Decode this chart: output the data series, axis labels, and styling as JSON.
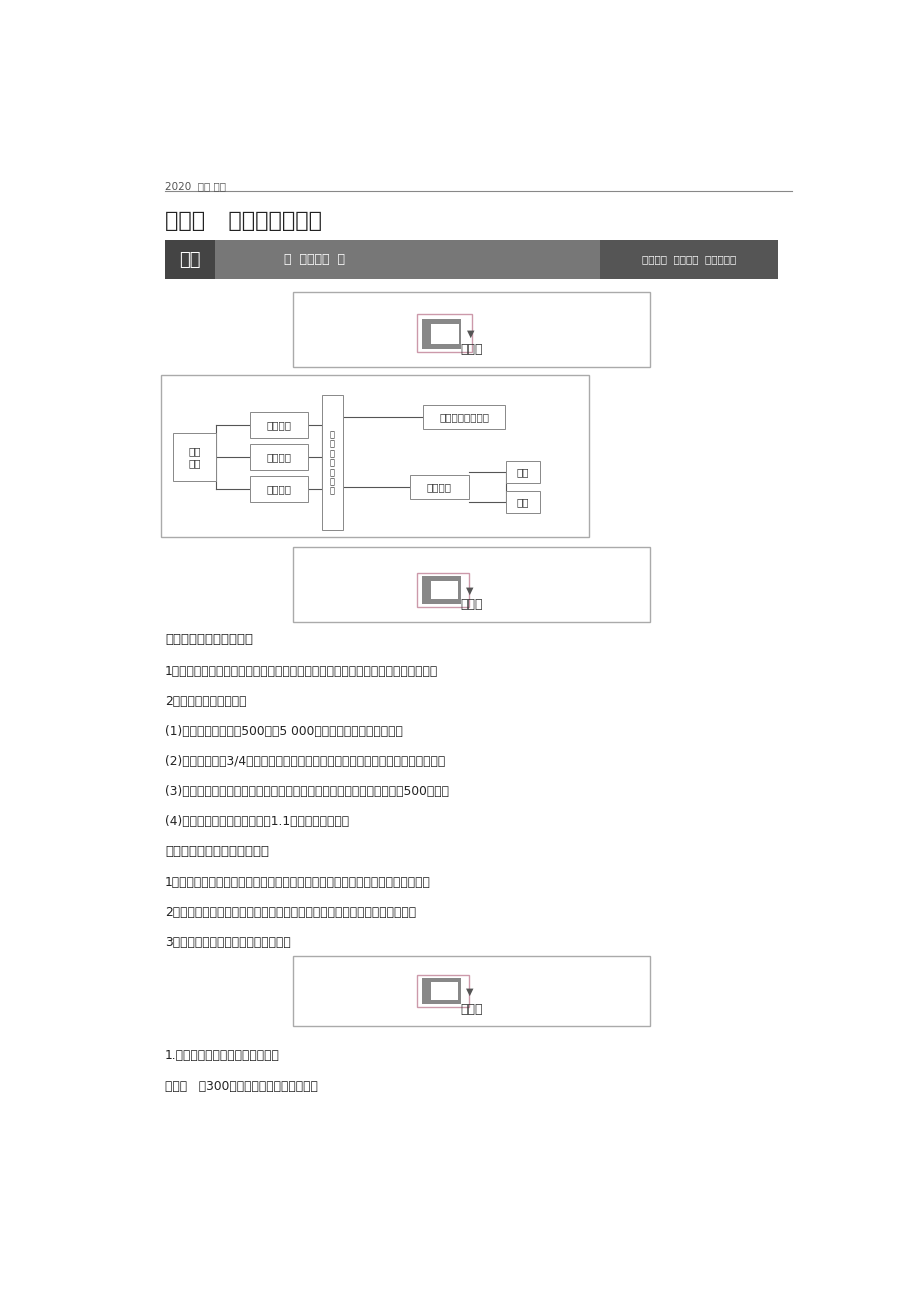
{
  "bg_color": "#ffffff",
  "page_width": 9.2,
  "page_height": 13.02,
  "header_text": "2020  高考 物理",
  "title_text": "第四节   生物多样性保护",
  "banner_bg": "#6d6d6d",
  "banner_left_text": "一测",
  "banner_mid_text": "基础过关",
  "banner_right_text": "分层设计  助学助记  认知更深刻",
  "jiyiji_label": "记一记",
  "tianyi_tian_label": "填一填",
  "yanyi_yan_label": "研一研",
  "section1_title": "一、物种灭绝现象正常吗",
  "text_lines": [
    "1．生物多样性的层次：包括遗传多样性、物种多样性和生态系统多样性三个层次。",
    "2．生物多样性的现状：",
    "(1)物种数量：估计有500万～5 000万种，目前数量日益减少。",
    "(2)物种分布：约3/4生活在热带地区，以生活在热带雨林和珊瑚礁中的最为丰富。",
    "(3)物种寿命：物种也有发生、发育和消亡的过程，物种平均寿命大约是500万年。",
    "(4)灭绝速度：自然状态下平均1.1年灭绝一个物种。"
  ],
  "section2_title": "二、人类活动加速了物种灭绝",
  "text_lines2": [
    "1．人类活动早期：全部依赖狩猎与采集为生，贪猎是当时物种灭绝的主要原因。",
    "2．人类活动对物种灭绝的影响：人类活动造成物种灭绝的速度在不断增加。",
    "3．灭绝种类：大部分为植物和昆虫。"
  ],
  "section3_title": "1.阅读材料，据此完成下列问题。",
  "section3_subtitle": "材料一   近300年来世界物种灭绝的趋势。"
}
